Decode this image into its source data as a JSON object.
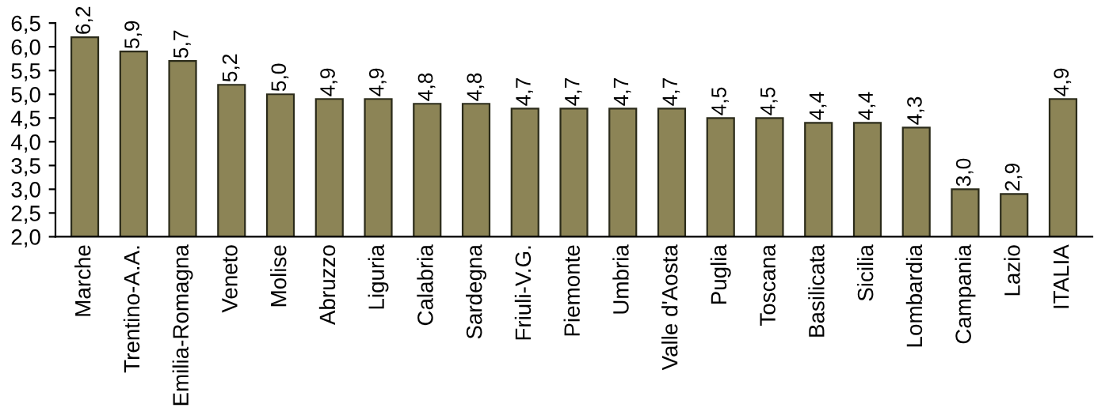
{
  "chart_data": {
    "type": "bar",
    "categories": [
      "Marche",
      "Trentino-A.A.",
      "Emilia-Romagna",
      "Veneto",
      "Molise",
      "Abruzzo",
      "Liguria",
      "Calabria",
      "Sardegna",
      "Friuli-V.G.",
      "Piemonte",
      "Umbria",
      "Valle d'Aosta",
      "Puglia",
      "Toscana",
      "Basilicata",
      "Sicilia",
      "Lombardia",
      "Campania",
      "Lazio",
      "ITALIA"
    ],
    "values": [
      6.2,
      5.9,
      5.7,
      5.2,
      5.0,
      4.9,
      4.9,
      4.8,
      4.8,
      4.7,
      4.7,
      4.7,
      4.7,
      4.5,
      4.5,
      4.4,
      4.4,
      4.3,
      3.0,
      2.9,
      4.9
    ],
    "value_labels": [
      "6,2",
      "5,9",
      "5,7",
      "5,2",
      "5,0",
      "4,9",
      "4,9",
      "4,8",
      "4,8",
      "4,7",
      "4,7",
      "4,7",
      "4,7",
      "4,5",
      "4,5",
      "4,4",
      "4,4",
      "4,3",
      "3,0",
      "2,9",
      "4,9"
    ],
    "color": "#8c8456",
    "ylim": [
      2.0,
      6.5
    ],
    "yticks": [
      {
        "value": 2.0,
        "label": "2,0"
      },
      {
        "value": 2.5,
        "label": "2,5"
      },
      {
        "value": 3.0,
        "label": "3,0"
      },
      {
        "value": 3.5,
        "label": "3,5"
      },
      {
        "value": 4.0,
        "label": "4,0"
      },
      {
        "value": 4.5,
        "label": "4,5"
      },
      {
        "value": 5.0,
        "label": "5,0"
      },
      {
        "value": 5.5,
        "label": "5,5"
      },
      {
        "value": 6.0,
        "label": "6,0"
      },
      {
        "value": 6.5,
        "label": "6,5"
      }
    ],
    "grid": false
  }
}
